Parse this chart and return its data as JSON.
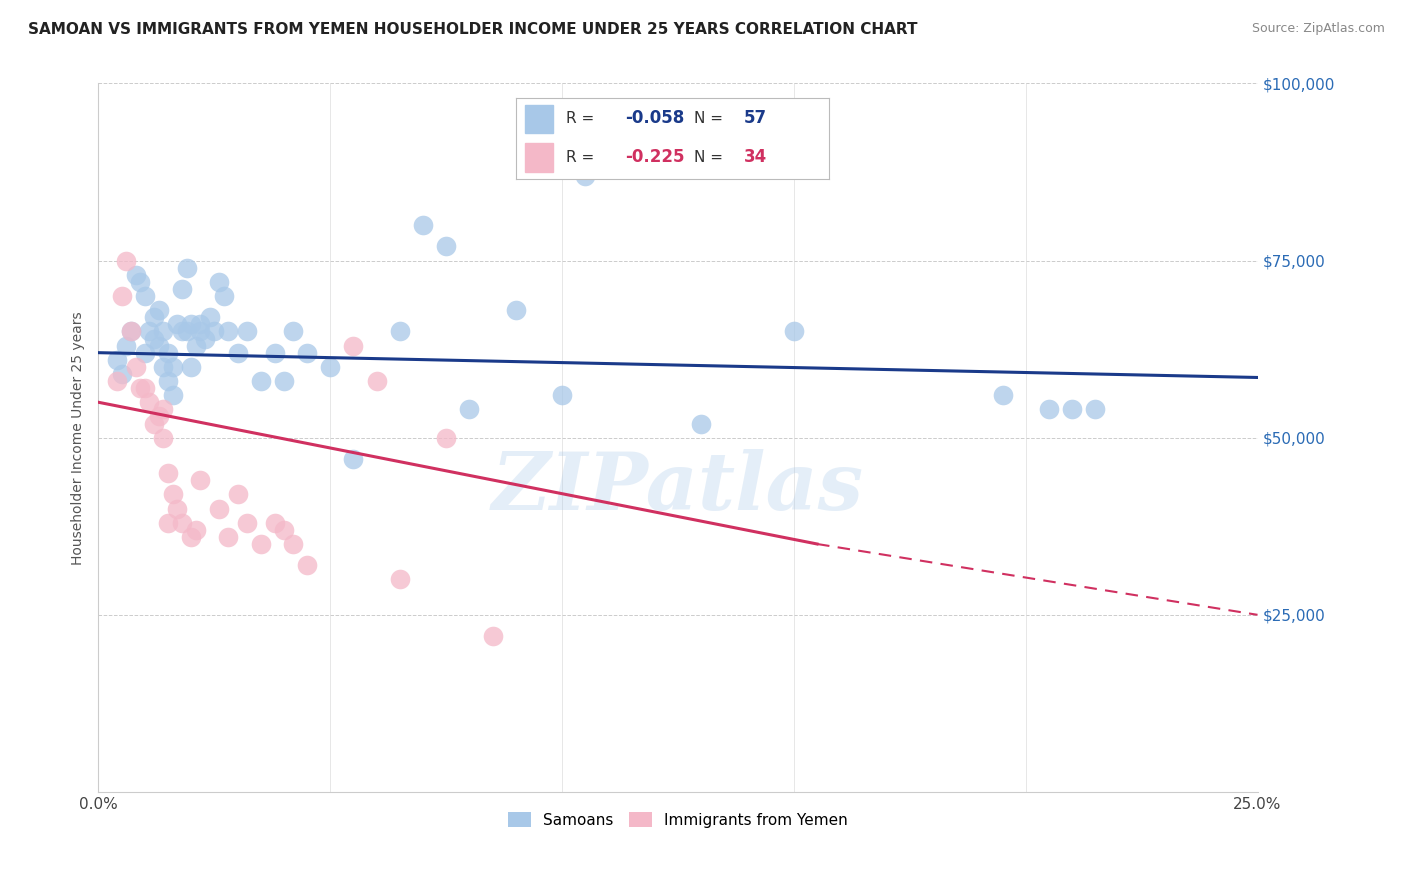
{
  "title": "SAMOAN VS IMMIGRANTS FROM YEMEN HOUSEHOLDER INCOME UNDER 25 YEARS CORRELATION CHART",
  "source": "Source: ZipAtlas.com",
  "ylabel": "Householder Income Under 25 years",
  "xlim": [
    0,
    0.25
  ],
  "ylim": [
    0,
    100000
  ],
  "xticks": [
    0.0,
    0.05,
    0.1,
    0.15,
    0.2,
    0.25
  ],
  "yticks": [
    0,
    25000,
    50000,
    75000,
    100000
  ],
  "xtick_labels": [
    "0.0%",
    "",
    "",
    "",
    "",
    "25.0%"
  ],
  "ytick_labels": [
    "",
    "$25,000",
    "$50,000",
    "$75,000",
    "$100,000"
  ],
  "legend_label1": "Samoans",
  "legend_label2": "Immigrants from Yemen",
  "R1": -0.058,
  "N1": 57,
  "R2": -0.225,
  "N2": 34,
  "color1": "#A8C8E8",
  "color2": "#F4B8C8",
  "trendline_color1": "#1A3A8A",
  "trendline_color2": "#D03060",
  "watermark": "ZIPatlas",
  "blue_trendline": [
    0.0,
    0.25,
    62000,
    58500
  ],
  "pink_trendline_solid": [
    0.0,
    0.155,
    55000,
    35000
  ],
  "pink_trendline_dashed": [
    0.155,
    0.25,
    35000,
    25000
  ],
  "blue_scatter_x": [
    0.004,
    0.005,
    0.006,
    0.007,
    0.008,
    0.009,
    0.01,
    0.01,
    0.011,
    0.012,
    0.012,
    0.013,
    0.013,
    0.014,
    0.014,
    0.015,
    0.015,
    0.016,
    0.016,
    0.017,
    0.018,
    0.018,
    0.019,
    0.019,
    0.02,
    0.02,
    0.021,
    0.022,
    0.022,
    0.023,
    0.024,
    0.025,
    0.026,
    0.027,
    0.028,
    0.03,
    0.032,
    0.035,
    0.038,
    0.04,
    0.042,
    0.045,
    0.05,
    0.055,
    0.065,
    0.07,
    0.075,
    0.08,
    0.09,
    0.1,
    0.105,
    0.13,
    0.15,
    0.195,
    0.205,
    0.21,
    0.215
  ],
  "blue_scatter_y": [
    61000,
    59000,
    63000,
    65000,
    73000,
    72000,
    62000,
    70000,
    65000,
    64000,
    67000,
    63000,
    68000,
    65000,
    60000,
    58000,
    62000,
    56000,
    60000,
    66000,
    71000,
    65000,
    74000,
    65000,
    66000,
    60000,
    63000,
    65000,
    66000,
    64000,
    67000,
    65000,
    72000,
    70000,
    65000,
    62000,
    65000,
    58000,
    62000,
    58000,
    65000,
    62000,
    60000,
    47000,
    65000,
    80000,
    77000,
    54000,
    68000,
    56000,
    87000,
    52000,
    65000,
    56000,
    54000,
    54000,
    54000
  ],
  "pink_scatter_x": [
    0.004,
    0.005,
    0.006,
    0.007,
    0.008,
    0.009,
    0.01,
    0.011,
    0.012,
    0.013,
    0.014,
    0.014,
    0.015,
    0.015,
    0.016,
    0.017,
    0.018,
    0.02,
    0.021,
    0.022,
    0.026,
    0.028,
    0.03,
    0.032,
    0.035,
    0.038,
    0.04,
    0.042,
    0.045,
    0.055,
    0.06,
    0.065,
    0.075,
    0.085
  ],
  "pink_scatter_y": [
    58000,
    70000,
    75000,
    65000,
    60000,
    57000,
    57000,
    55000,
    52000,
    53000,
    50000,
    54000,
    38000,
    45000,
    42000,
    40000,
    38000,
    36000,
    37000,
    44000,
    40000,
    36000,
    42000,
    38000,
    35000,
    38000,
    37000,
    35000,
    32000,
    63000,
    58000,
    30000,
    50000,
    22000
  ]
}
